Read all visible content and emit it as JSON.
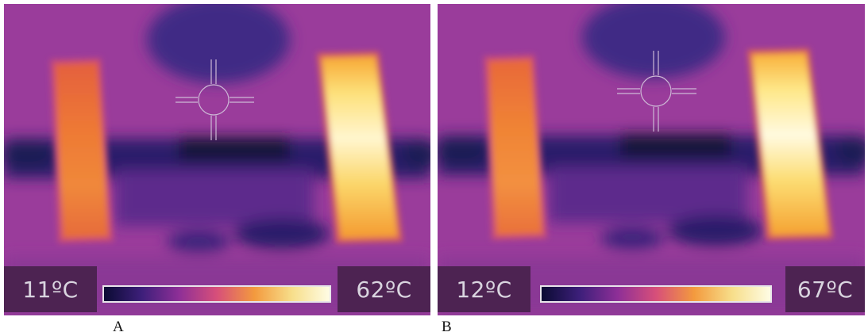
{
  "panels": [
    {
      "caption": "A",
      "min_temp": "11ºC",
      "max_temp": "62ºC",
      "palette": [
        "#0b0b33",
        "#3d1f7a",
        "#8e2f97",
        "#d74f7a",
        "#f39a3e",
        "#f7de8a",
        "#fefce4"
      ]
    },
    {
      "caption": "B",
      "min_temp": "12ºC",
      "max_temp": "67ºC",
      "palette": [
        "#0b0b33",
        "#3d1f7a",
        "#8e2f97",
        "#d74f7a",
        "#f39a3e",
        "#f7de8a",
        "#fefce4"
      ]
    }
  ]
}
